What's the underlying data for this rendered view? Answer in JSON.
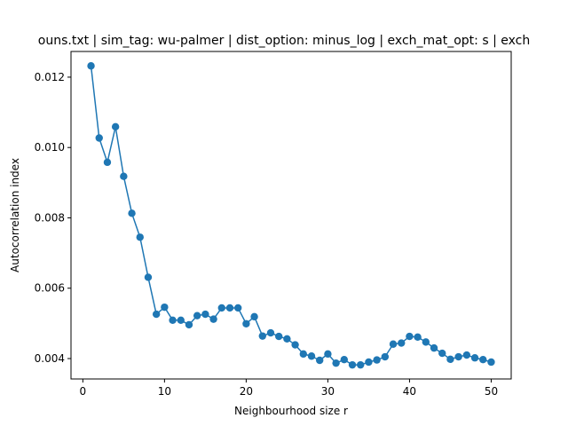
{
  "chart_data": {
    "type": "line",
    "title": "ouns.txt | sim_tag: wu-palmer | dist_option: minus_log | exch_mat_opt: s | exch",
    "xlabel": "Neighbourhood size r",
    "ylabel": "Autocorrelation index",
    "xlim": [
      -1.45,
      52.45
    ],
    "ylim": [
      0.00342,
      0.01273
    ],
    "xticks": [
      0,
      10,
      20,
      30,
      40,
      50
    ],
    "yticks": [
      0.004,
      0.006,
      0.008,
      0.01,
      0.012
    ],
    "ytick_labels": [
      "0.004",
      "0.006",
      "0.008",
      "0.010",
      "0.012"
    ],
    "grid": false,
    "marker": "circle",
    "color": "#1f77b4",
    "series": [
      {
        "x": [
          1,
          2,
          3,
          4,
          5,
          6,
          7,
          8,
          9,
          10,
          11,
          12,
          13,
          14,
          15,
          16,
          17,
          18,
          19,
          20,
          21,
          22,
          23,
          24,
          25,
          26,
          27,
          28,
          29,
          30,
          31,
          32,
          33,
          34,
          35,
          36,
          37,
          38,
          39,
          40,
          41,
          42,
          43,
          44,
          45,
          46,
          47,
          48,
          49,
          50
        ],
        "y": [
          0.01232,
          0.01027,
          0.00958,
          0.01059,
          0.00918,
          0.00813,
          0.00745,
          0.00631,
          0.00526,
          0.00546,
          0.00509,
          0.00509,
          0.00496,
          0.00522,
          0.00526,
          0.00512,
          0.00544,
          0.00544,
          0.00544,
          0.00499,
          0.00519,
          0.00464,
          0.00473,
          0.00463,
          0.00456,
          0.00439,
          0.00413,
          0.00407,
          0.00395,
          0.00413,
          0.00387,
          0.00397,
          0.00382,
          0.00382,
          0.0039,
          0.00396,
          0.00405,
          0.00441,
          0.00444,
          0.00463,
          0.00461,
          0.00447,
          0.0043,
          0.00415,
          0.00398,
          0.00405,
          0.0041,
          0.00402,
          0.00397,
          0.0039
        ]
      }
    ]
  }
}
